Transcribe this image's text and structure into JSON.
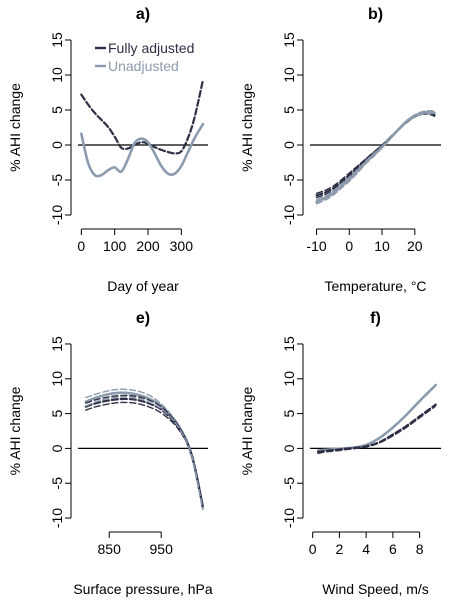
{
  "colors": {
    "adjusted": "#2f2f46",
    "unadjusted": "#8c9bae",
    "axis": "#000000"
  },
  "legend": [
    {
      "label": "Fully adjusted",
      "color": "#2f2f46"
    },
    {
      "label": "Unadjusted",
      "color": "#8c9bae"
    }
  ],
  "chart_data": [
    {
      "type": "line",
      "title": "a)",
      "xlabel": "Day of year",
      "ylabel": "% AHI change",
      "xlim": [
        -10,
        380
      ],
      "ylim": [
        -11,
        16
      ],
      "xticks": [
        0,
        100,
        200,
        300
      ],
      "yticks": [
        -10,
        -5,
        0,
        5,
        10,
        15
      ],
      "zero_line": true,
      "legend": true,
      "x": [
        0,
        20,
        40,
        60,
        80,
        100,
        120,
        140,
        160,
        180,
        200,
        220,
        240,
        260,
        280,
        300,
        320,
        340,
        365
      ],
      "series": [
        {
          "name": "Fully adjusted",
          "style": "adjusted",
          "values": [
            7.2,
            5.8,
            4.6,
            3.6,
            2.6,
            1.2,
            -0.4,
            -0.5,
            0.0,
            0.4,
            0.2,
            -0.3,
            -0.7,
            -1.0,
            -1.2,
            -0.9,
            1.0,
            4.0,
            9.3
          ]
        },
        {
          "name": "Unadjusted",
          "style": "unadjusted",
          "values": [
            1.6,
            -2.5,
            -4.3,
            -4.3,
            -3.6,
            -3.2,
            -3.8,
            -2.0,
            0.3,
            0.9,
            0.4,
            -1.2,
            -3.0,
            -4.1,
            -4.1,
            -3.0,
            -1.0,
            1.0,
            3.0
          ]
        }
      ]
    },
    {
      "type": "line",
      "title": "b)",
      "xlabel": "Temperature, °C",
      "ylabel": "% AHI change",
      "xlim": [
        -12,
        28
      ],
      "ylim": [
        -11,
        16
      ],
      "xticks": [
        -10,
        0,
        10,
        20
      ],
      "yticks": [
        -10,
        -5,
        0,
        5,
        10,
        15
      ],
      "zero_line": true,
      "x": [
        -10,
        -7.5,
        -5,
        -2.5,
        0,
        2.5,
        5,
        7.5,
        10,
        12,
        15,
        17.5,
        20,
        22.5,
        25,
        26
      ],
      "series": [
        {
          "style": "adjusted-ci",
          "values": [
            -6.9,
            -6.5,
            -5.9,
            -5.0,
            -4.0,
            -3.0,
            -2.0,
            -1.0,
            0.0,
            0.9,
            2.3,
            3.4,
            4.2,
            4.6,
            4.6,
            4.4
          ]
        },
        {
          "style": "adjusted",
          "values": [
            -7.2,
            -6.8,
            -6.2,
            -5.3,
            -4.3,
            -3.2,
            -2.1,
            -1.1,
            -0.1,
            0.8,
            2.2,
            3.3,
            4.1,
            4.5,
            4.5,
            4.3
          ]
        },
        {
          "style": "adjusted-ci",
          "values": [
            -7.5,
            -7.1,
            -6.5,
            -5.6,
            -4.6,
            -3.4,
            -2.3,
            -1.2,
            -0.2,
            0.7,
            2.1,
            3.2,
            4.0,
            4.4,
            4.3,
            4.1
          ]
        },
        {
          "style": "unadjusted-ci",
          "values": [
            -7.8,
            -7.3,
            -6.6,
            -5.6,
            -4.6,
            -3.5,
            -2.3,
            -1.2,
            -0.2,
            0.8,
            2.3,
            3.5,
            4.3,
            4.8,
            4.9,
            4.8
          ]
        },
        {
          "style": "unadjusted",
          "values": [
            -8.1,
            -7.6,
            -6.9,
            -5.9,
            -4.9,
            -3.7,
            -2.5,
            -1.4,
            -0.3,
            0.7,
            2.2,
            3.4,
            4.2,
            4.6,
            4.7,
            4.6
          ]
        },
        {
          "style": "unadjusted-ci",
          "values": [
            -8.4,
            -7.9,
            -7.2,
            -6.2,
            -5.2,
            -4.0,
            -2.7,
            -1.6,
            -0.4,
            0.6,
            2.1,
            3.3,
            4.0,
            4.4,
            4.5,
            4.4
          ]
        }
      ]
    },
    {
      "type": "line",
      "title": "e)",
      "xlabel": "Surface pressure, hPa",
      "ylabel": "% AHI change",
      "xlim": [
        790,
        1040
      ],
      "ylim": [
        -11,
        16
      ],
      "xticks": [
        850,
        950
      ],
      "yticks": [
        -10,
        -5,
        0,
        5,
        10,
        15
      ],
      "zero_line": true,
      "x": [
        805,
        825,
        850,
        875,
        900,
        925,
        950,
        975,
        990,
        1000,
        1010,
        1020,
        1030
      ],
      "series": [
        {
          "style": "unadjusted-ci",
          "values": [
            7.3,
            7.8,
            8.3,
            8.5,
            8.3,
            7.7,
            6.4,
            4.3,
            2.5,
            1.0,
            -1.2,
            -4.5,
            -8.2
          ]
        },
        {
          "style": "unadjusted",
          "values": [
            6.7,
            7.3,
            7.8,
            8.0,
            7.8,
            7.2,
            6.1,
            4.1,
            2.4,
            0.9,
            -1.3,
            -4.6,
            -8.4
          ]
        },
        {
          "style": "adjusted-ci",
          "values": [
            6.5,
            7.0,
            7.4,
            7.6,
            7.5,
            7.0,
            6.0,
            4.1,
            2.4,
            0.9,
            -1.2,
            -4.5,
            -8.1
          ]
        },
        {
          "style": "adjusted",
          "values": [
            6.0,
            6.5,
            6.9,
            7.1,
            7.0,
            6.5,
            5.6,
            3.8,
            2.2,
            0.8,
            -1.3,
            -4.6,
            -8.4
          ]
        },
        {
          "style": "adjusted-ci",
          "values": [
            5.5,
            6.0,
            6.4,
            6.6,
            6.5,
            6.0,
            5.1,
            3.5,
            2.0,
            0.7,
            -1.4,
            -4.8,
            -8.7
          ]
        },
        {
          "style": "unadjusted-ci",
          "values": [
            6.1,
            6.7,
            7.2,
            7.4,
            7.3,
            6.7,
            5.7,
            3.9,
            2.2,
            0.8,
            -1.4,
            -4.8,
            -8.8
          ]
        }
      ]
    },
    {
      "type": "line",
      "title": "f)",
      "xlabel": "Wind Speed, m/s",
      "ylabel": "% AHI change",
      "xlim": [
        -0.2,
        9.6
      ],
      "ylim": [
        -11,
        16
      ],
      "xticks": [
        0,
        2,
        4,
        6,
        8
      ],
      "yticks": [
        -10,
        -5,
        0,
        5,
        10,
        15
      ],
      "zero_line": true,
      "x": [
        0.4,
        1,
        2,
        3,
        4,
        5,
        6,
        7,
        8,
        9,
        9.2
      ],
      "series": [
        {
          "style": "unadjusted",
          "values": [
            -0.3,
            -0.2,
            -0.05,
            0.1,
            0.5,
            1.5,
            3.0,
            4.8,
            6.8,
            8.7,
            9.1
          ]
        },
        {
          "style": "adjusted",
          "values": [
            -0.5,
            -0.35,
            -0.15,
            0.05,
            0.3,
            0.9,
            2.0,
            3.2,
            4.6,
            6.0,
            6.3
          ]
        },
        {
          "style": "adjusted-ci",
          "values": [
            -0.7,
            -0.5,
            -0.3,
            -0.05,
            0.2,
            0.8,
            1.8,
            3.0,
            4.4,
            5.8,
            6.1
          ]
        }
      ]
    }
  ]
}
